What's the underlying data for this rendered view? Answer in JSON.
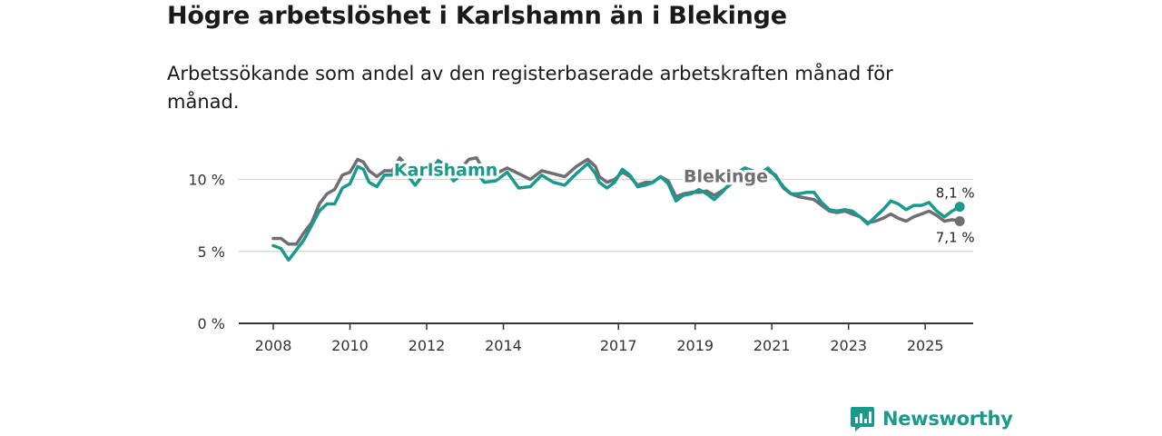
{
  "chart_data": {
    "type": "line",
    "title": "Högre arbetslöshet i Karlshamn än i Blekinge",
    "subtitle": "Arbetssökande som andel av den registerbaserade arbetskraften månad för månad.",
    "xlabel": "",
    "ylabel": "",
    "xlim": [
      2007.6,
      2026.75
    ],
    "ylim": [
      0,
      13
    ],
    "x_ticks": [
      {
        "value": 2008.5,
        "label": "2008"
      },
      {
        "value": 2010.5,
        "label": "2010"
      },
      {
        "value": 2012.5,
        "label": "2012"
      },
      {
        "value": 2014.5,
        "label": "2014"
      },
      {
        "value": 2017.5,
        "label": "2017"
      },
      {
        "value": 2019.5,
        "label": "2019"
      },
      {
        "value": 2021.5,
        "label": "2021"
      },
      {
        "value": 2023.5,
        "label": "2023"
      },
      {
        "value": 2025.5,
        "label": "2025"
      }
    ],
    "y_ticks": [
      {
        "value": 0,
        "label": "0 %"
      },
      {
        "value": 5,
        "label": "5 %"
      },
      {
        "value": 10,
        "label": "10 %"
      }
    ],
    "series": [
      {
        "name": "Blekinge",
        "color": "#6e6e73",
        "end_label": "7,1 %",
        "points": [
          [
            2008.5,
            5.9
          ],
          [
            2008.7,
            5.9
          ],
          [
            2008.9,
            5.5
          ],
          [
            2009.1,
            5.5
          ],
          [
            2009.3,
            6.3
          ],
          [
            2009.5,
            7.0
          ],
          [
            2009.7,
            8.3
          ],
          [
            2009.9,
            9.0
          ],
          [
            2010.1,
            9.3
          ],
          [
            2010.3,
            10.3
          ],
          [
            2010.5,
            10.5
          ],
          [
            2010.7,
            11.4
          ],
          [
            2010.85,
            11.2
          ],
          [
            2011.0,
            10.6
          ],
          [
            2011.2,
            10.2
          ],
          [
            2011.4,
            10.6
          ],
          [
            2011.6,
            10.6
          ],
          [
            2011.8,
            11.5
          ],
          [
            2012.0,
            10.9
          ],
          [
            2012.2,
            10.2
          ],
          [
            2012.4,
            10.5
          ],
          [
            2012.6,
            10.6
          ],
          [
            2012.8,
            11.3
          ],
          [
            2013.0,
            11.0
          ],
          [
            2013.2,
            10.5
          ],
          [
            2013.4,
            10.8
          ],
          [
            2013.6,
            11.4
          ],
          [
            2013.8,
            11.5
          ],
          [
            2014.0,
            10.6
          ],
          [
            2014.3,
            10.4
          ],
          [
            2014.6,
            10.8
          ],
          [
            2014.9,
            10.4
          ],
          [
            2015.2,
            10.0
          ],
          [
            2015.5,
            10.6
          ],
          [
            2015.8,
            10.4
          ],
          [
            2016.1,
            10.2
          ],
          [
            2016.4,
            10.9
          ],
          [
            2016.7,
            11.4
          ],
          [
            2016.9,
            10.9
          ],
          [
            2017.0,
            10.2
          ],
          [
            2017.2,
            9.8
          ],
          [
            2017.4,
            10.0
          ],
          [
            2017.6,
            10.5
          ],
          [
            2017.8,
            10.2
          ],
          [
            2018.0,
            9.6
          ],
          [
            2018.2,
            9.8
          ],
          [
            2018.4,
            9.8
          ],
          [
            2018.6,
            10.2
          ],
          [
            2018.8,
            9.9
          ],
          [
            2019.0,
            8.8
          ],
          [
            2019.2,
            9.0
          ],
          [
            2019.4,
            9.1
          ],
          [
            2019.6,
            9.1
          ],
          [
            2019.8,
            9.2
          ],
          [
            2020.0,
            8.9
          ],
          [
            2020.2,
            9.2
          ],
          [
            2020.4,
            9.6
          ],
          [
            2020.6,
            10.3
          ],
          [
            2020.8,
            10.5
          ],
          [
            2021.0,
            10.6
          ],
          [
            2021.2,
            10.3
          ],
          [
            2021.4,
            10.6
          ],
          [
            2021.6,
            10.3
          ],
          [
            2021.8,
            9.4
          ],
          [
            2022.0,
            9.0
          ],
          [
            2022.2,
            8.8
          ],
          [
            2022.4,
            8.7
          ],
          [
            2022.6,
            8.6
          ],
          [
            2022.8,
            8.2
          ],
          [
            2023.0,
            7.8
          ],
          [
            2023.2,
            7.7
          ],
          [
            2023.4,
            7.8
          ],
          [
            2023.6,
            7.6
          ],
          [
            2023.8,
            7.4
          ],
          [
            2024.0,
            7.0
          ],
          [
            2024.2,
            7.1
          ],
          [
            2024.4,
            7.3
          ],
          [
            2024.6,
            7.6
          ],
          [
            2024.8,
            7.3
          ],
          [
            2025.0,
            7.1
          ],
          [
            2025.2,
            7.4
          ],
          [
            2025.4,
            7.6
          ],
          [
            2025.6,
            7.8
          ],
          [
            2025.8,
            7.5
          ],
          [
            2026.0,
            7.1
          ],
          [
            2026.2,
            7.2
          ],
          [
            2026.4,
            7.1
          ]
        ]
      },
      {
        "name": "Karlshamn",
        "color": "#1a9a8c",
        "end_label": "8,1 %",
        "points": [
          [
            2008.5,
            5.4
          ],
          [
            2008.7,
            5.2
          ],
          [
            2008.9,
            4.4
          ],
          [
            2009.1,
            5.1
          ],
          [
            2009.3,
            5.8
          ],
          [
            2009.5,
            6.8
          ],
          [
            2009.7,
            7.8
          ],
          [
            2009.9,
            8.3
          ],
          [
            2010.1,
            8.3
          ],
          [
            2010.3,
            9.4
          ],
          [
            2010.5,
            9.7
          ],
          [
            2010.7,
            10.9
          ],
          [
            2010.85,
            10.7
          ],
          [
            2011.0,
            9.8
          ],
          [
            2011.2,
            9.5
          ],
          [
            2011.4,
            10.3
          ],
          [
            2011.6,
            10.3
          ],
          [
            2011.8,
            11.2
          ],
          [
            2012.0,
            10.3
          ],
          [
            2012.2,
            9.6
          ],
          [
            2012.4,
            10.3
          ],
          [
            2012.6,
            10.4
          ],
          [
            2012.8,
            11.3
          ],
          [
            2013.0,
            10.7
          ],
          [
            2013.2,
            9.9
          ],
          [
            2013.4,
            10.3
          ],
          [
            2013.6,
            10.7
          ],
          [
            2013.8,
            10.5
          ],
          [
            2014.0,
            9.8
          ],
          [
            2014.3,
            9.9
          ],
          [
            2014.6,
            10.5
          ],
          [
            2014.9,
            9.4
          ],
          [
            2015.2,
            9.5
          ],
          [
            2015.5,
            10.3
          ],
          [
            2015.8,
            9.8
          ],
          [
            2016.1,
            9.6
          ],
          [
            2016.4,
            10.4
          ],
          [
            2016.7,
            11.1
          ],
          [
            2016.9,
            10.4
          ],
          [
            2017.0,
            9.8
          ],
          [
            2017.2,
            9.4
          ],
          [
            2017.4,
            9.8
          ],
          [
            2017.6,
            10.7
          ],
          [
            2017.8,
            10.3
          ],
          [
            2018.0,
            9.5
          ],
          [
            2018.2,
            9.6
          ],
          [
            2018.4,
            9.8
          ],
          [
            2018.6,
            10.2
          ],
          [
            2018.8,
            9.7
          ],
          [
            2019.0,
            8.5
          ],
          [
            2019.2,
            8.9
          ],
          [
            2019.4,
            9.0
          ],
          [
            2019.6,
            9.3
          ],
          [
            2019.8,
            9.0
          ],
          [
            2020.0,
            8.6
          ],
          [
            2020.2,
            9.1
          ],
          [
            2020.4,
            9.7
          ],
          [
            2020.6,
            10.5
          ],
          [
            2020.8,
            10.8
          ],
          [
            2021.0,
            10.6
          ],
          [
            2021.2,
            10.4
          ],
          [
            2021.4,
            10.8
          ],
          [
            2021.6,
            10.2
          ],
          [
            2021.8,
            9.5
          ],
          [
            2022.0,
            9.0
          ],
          [
            2022.2,
            9.0
          ],
          [
            2022.4,
            9.1
          ],
          [
            2022.6,
            9.1
          ],
          [
            2022.8,
            8.4
          ],
          [
            2023.0,
            7.9
          ],
          [
            2023.2,
            7.8
          ],
          [
            2023.4,
            7.9
          ],
          [
            2023.6,
            7.8
          ],
          [
            2023.8,
            7.4
          ],
          [
            2024.0,
            6.9
          ],
          [
            2024.2,
            7.4
          ],
          [
            2024.4,
            7.9
          ],
          [
            2024.6,
            8.5
          ],
          [
            2024.8,
            8.3
          ],
          [
            2025.0,
            7.9
          ],
          [
            2025.2,
            8.2
          ],
          [
            2025.4,
            8.2
          ],
          [
            2025.6,
            8.4
          ],
          [
            2025.8,
            7.8
          ],
          [
            2026.0,
            7.4
          ],
          [
            2026.2,
            7.8
          ],
          [
            2026.4,
            8.1
          ]
        ]
      }
    ],
    "series_labels": [
      {
        "name": "Karlshamn",
        "text": "Karlshamn",
        "anchor": [
          2013.0,
          10.25
        ]
      },
      {
        "name": "Blekinge",
        "text": "Blekinge",
        "anchor": [
          2020.3,
          9.8
        ]
      }
    ]
  },
  "brand": {
    "name": "Newsworthy",
    "icon": "newsworthy-logo-icon",
    "color": "#1a9a8c"
  }
}
